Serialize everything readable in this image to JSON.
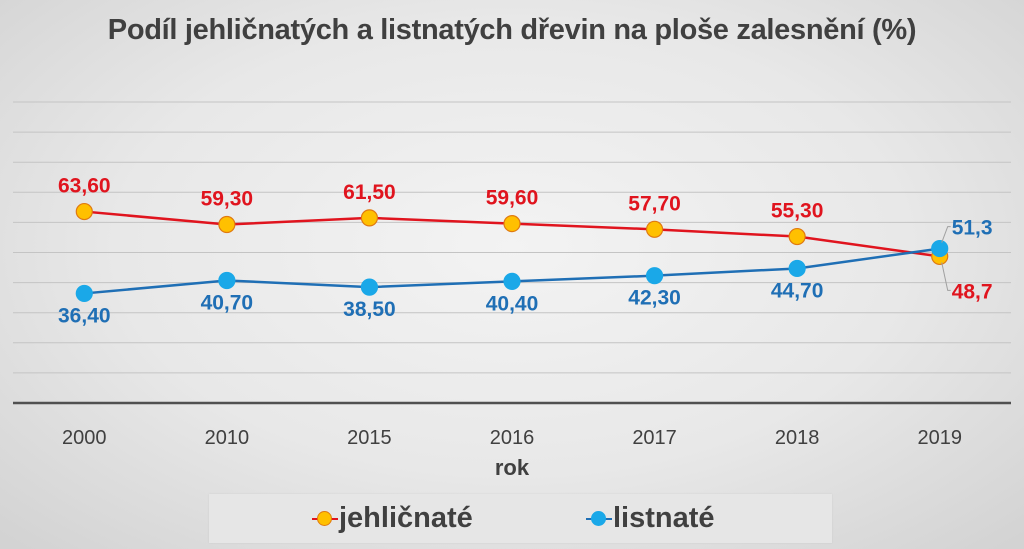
{
  "chart_data": {
    "type": "line",
    "title": "Podíl jehličnatých a listnatých dřevin na ploše zalesnění (%)",
    "xlabel": "rok",
    "ylabel": "",
    "categories": [
      "2000",
      "2010",
      "2015",
      "2016",
      "2017",
      "2018",
      "2019"
    ],
    "ylim": [
      0,
      100
    ],
    "y_gridlines": [
      10,
      20,
      30,
      40,
      50,
      60,
      70,
      80,
      90,
      100
    ],
    "grid": true,
    "y_tick_labels_visible": false,
    "legend_position": "bottom",
    "series": [
      {
        "name": "jehličnaté",
        "values": [
          63.6,
          59.3,
          61.5,
          59.6,
          57.7,
          55.3,
          48.7
        ],
        "labels": [
          "63,60",
          "59,30",
          "61,50",
          "59,60",
          "57,70",
          "55,30",
          "48,7"
        ],
        "line_color": "#e0141e",
        "marker_fill": "#ffc000",
        "marker_stroke": "#e07a10",
        "label_color": "#e0141e"
      },
      {
        "name": "listnaté",
        "values": [
          36.4,
          40.7,
          38.5,
          40.4,
          42.3,
          44.7,
          51.3
        ],
        "labels": [
          "36,40",
          "40,70",
          "38,50",
          "40,40",
          "42,30",
          "44,70",
          "51,3"
        ],
        "line_color": "#1f6fb5",
        "marker_fill": "#1aa8e8",
        "marker_stroke": "#1aa8e8",
        "label_color": "#1f6fb5"
      }
    ]
  }
}
